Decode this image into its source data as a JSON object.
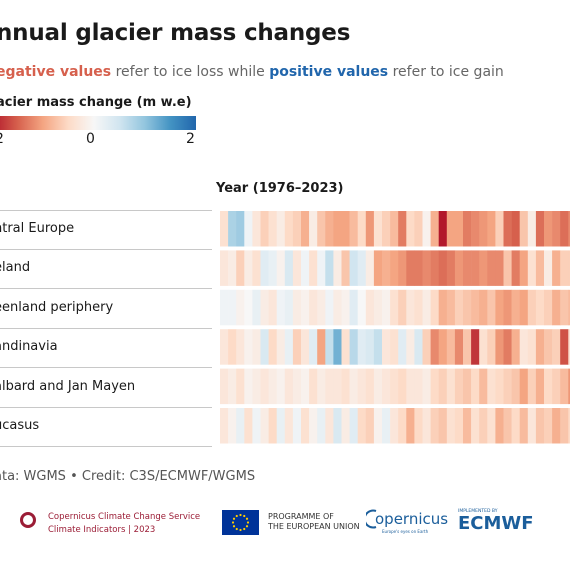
{
  "title": "nnual glacier mass changes",
  "subtitle": {
    "part1": "egative values",
    "part2": " refer to ice loss while ",
    "part3": "positive values",
    "part4": " refer to ice gain"
  },
  "chart_data": {
    "type": "heatmap",
    "title": "nnual glacier mass changes",
    "colorbar": {
      "label": "acier mass change (m w.e)",
      "min": -2,
      "max": 2,
      "tick_labels": [
        "2",
        "0",
        "2"
      ],
      "colors": [
        "#b2182b",
        "#d6604d",
        "#f4a582",
        "#fddbc7",
        "#f7f7f7",
        "#d1e5f0",
        "#92c5de",
        "#4393c3",
        "#2166ac"
      ]
    },
    "xlabel": "Year (1976–2023)",
    "rows": [
      {
        "label": "ntral Europe",
        "values": [
          -0.4,
          0.8,
          0.9,
          0.1,
          -0.3,
          -0.6,
          -0.4,
          -0.2,
          -0.5,
          -0.6,
          -0.9,
          -0.2,
          -0.7,
          -0.9,
          -1.0,
          -1.0,
          -0.8,
          -0.5,
          -1.1,
          -0.4,
          -0.6,
          -0.8,
          -1.3,
          -0.5,
          -0.6,
          -0.1,
          -0.9,
          -2.1,
          -1.0,
          -1.0,
          -1.3,
          -1.2,
          -1.1,
          -1.0,
          -0.6,
          -1.4,
          -1.5,
          -0.7,
          -0.2,
          -1.4,
          -1.1,
          -1.2,
          -1.4,
          -1.2,
          -1.0,
          -0.8,
          -1.5,
          -1.9
        ]
      },
      {
        "label": "eland",
        "values": [
          -0.3,
          -0.2,
          -0.6,
          -0.2,
          -0.4,
          0.3,
          0.2,
          -0.1,
          0.4,
          -0.3,
          0.1,
          -0.4,
          0.1,
          0.6,
          -0.2,
          -0.7,
          0.5,
          0.3,
          -0.2,
          -1.0,
          -0.9,
          -1.0,
          -1.1,
          -1.3,
          -1.3,
          -1.2,
          -1.3,
          -1.4,
          -1.3,
          -1.1,
          -1.2,
          -1.2,
          -1.1,
          -1.2,
          -1.2,
          -0.7,
          -1.3,
          -1.0,
          -0.4,
          -0.8,
          -0.2,
          -0.9,
          -0.6,
          -0.6,
          -0.9,
          -0.7,
          -1.3,
          -1.1
        ]
      },
      {
        "label": "eenland periphery",
        "values": [
          0.1,
          0.1,
          -0.1,
          0.0,
          0.2,
          -0.2,
          -0.3,
          0.1,
          0.2,
          -0.2,
          -0.1,
          -0.3,
          -0.2,
          0.1,
          -0.2,
          -0.1,
          0.3,
          0.0,
          -0.3,
          -0.2,
          -0.1,
          -0.4,
          -0.6,
          -0.3,
          -0.4,
          -0.2,
          -0.5,
          -0.9,
          -0.8,
          -0.6,
          -0.7,
          -0.8,
          -0.9,
          -0.7,
          -1.0,
          -1.1,
          -0.9,
          -1.0,
          -0.6,
          -0.5,
          -0.6,
          -0.9,
          -0.7,
          -0.8,
          -1.1,
          -0.5,
          -0.9,
          -1.0
        ]
      },
      {
        "label": "andinavia",
        "values": [
          -0.3,
          -0.5,
          -0.3,
          -0.1,
          -0.2,
          0.4,
          -0.5,
          -0.2,
          0.2,
          -0.6,
          -0.3,
          0.3,
          -1.0,
          0.6,
          1.2,
          -0.4,
          0.7,
          0.3,
          0.4,
          0.6,
          -0.3,
          -0.4,
          0.3,
          -0.2,
          0.4,
          -0.6,
          -1.2,
          -1.0,
          -0.8,
          -1.2,
          -0.7,
          -1.8,
          -0.4,
          -0.6,
          -1.1,
          -1.3,
          -0.9,
          -0.3,
          -0.4,
          -0.9,
          -0.7,
          -0.6,
          -1.6,
          -0.4,
          -0.5,
          -1.3,
          -0.8,
          -1.0
        ]
      },
      {
        "label": "albard and Jan Mayen",
        "values": [
          -0.3,
          -0.2,
          -0.4,
          -0.1,
          -0.2,
          -0.3,
          -0.2,
          -0.1,
          -0.3,
          -0.2,
          -0.1,
          -0.4,
          -0.2,
          -0.3,
          -0.3,
          -0.4,
          -0.2,
          -0.3,
          -0.4,
          -0.2,
          -0.3,
          -0.4,
          -0.5,
          -0.3,
          -0.3,
          -0.2,
          -0.5,
          -0.6,
          -0.4,
          -0.6,
          -0.7,
          -0.5,
          -0.8,
          -0.4,
          -0.5,
          -0.6,
          -0.7,
          -1.0,
          -0.6,
          -0.9,
          -0.5,
          -0.6,
          -0.8,
          -1.1,
          -0.6,
          -0.7,
          -1.0,
          -0.9
        ]
      },
      {
        "label": "ucasus",
        "values": [
          -0.3,
          -0.1,
          0.2,
          -0.4,
          0.1,
          -0.2,
          -0.5,
          0.2,
          -0.3,
          0.1,
          -0.4,
          -0.1,
          0.2,
          -0.3,
          0.4,
          -0.2,
          0.3,
          -0.5,
          -0.6,
          -0.1,
          0.2,
          -0.3,
          -0.5,
          -0.9,
          -0.5,
          -0.3,
          -0.6,
          -0.7,
          -0.4,
          -0.5,
          -0.8,
          -0.4,
          -0.6,
          -0.4,
          -0.9,
          -0.7,
          -0.5,
          -0.8,
          -0.3,
          -0.7,
          -0.6,
          -0.9,
          -0.7,
          -0.5,
          -0.8,
          -0.6,
          -0.7,
          -0.6
        ]
      }
    ]
  },
  "source": "ata: WGMS • Credit: C3S/ECMWF/WGMS",
  "footer": {
    "c3s_line1": "Copernicus Climate Change Service",
    "c3s_line2": "Climate Indicators | 2023",
    "eu_line1": "PROGRAMME OF",
    "eu_line2": "THE EUROPEAN UNION",
    "copernicus_name": "opernicus",
    "copernicus_tagline": "Europe's eyes on Earth",
    "ecmwf_tag": "IMPLEMENTED BY",
    "ecmwf_name": "ECMWF"
  }
}
